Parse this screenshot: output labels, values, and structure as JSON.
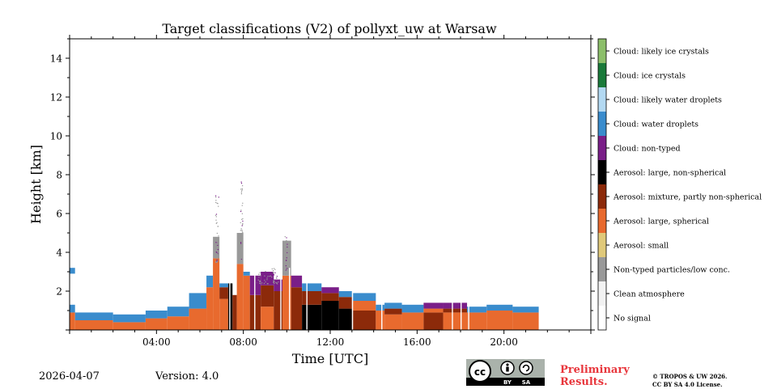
{
  "chart_data": {
    "type": "heatmap",
    "title": "Target classifications (V2) of pollyxt_uw at Warsaw",
    "xlabel": "Time [UTC]",
    "ylabel": "Height [km]",
    "xlim": [
      0,
      24
    ],
    "ylim": [
      0,
      15
    ],
    "x_ticks": [
      {
        "v": 4,
        "label": "04:00"
      },
      {
        "v": 8,
        "label": "08:00"
      },
      {
        "v": 12,
        "label": "12:00"
      },
      {
        "v": 16,
        "label": "16:00"
      },
      {
        "v": 20,
        "label": "20:00"
      }
    ],
    "y_ticks": [
      {
        "v": 2,
        "label": "2"
      },
      {
        "v": 4,
        "label": "4"
      },
      {
        "v": 6,
        "label": "6"
      },
      {
        "v": 8,
        "label": "8"
      },
      {
        "v": 10,
        "label": "10"
      },
      {
        "v": 12,
        "label": "12"
      },
      {
        "v": 14,
        "label": "14"
      }
    ],
    "classes": [
      {
        "label": "No signal",
        "color": "#ffffff"
      },
      {
        "label": "Clean atmosphere",
        "color": "#f2f2f2"
      },
      {
        "label": "Non-typed particles/low conc.",
        "color": "#999999"
      },
      {
        "label": "Aerosol: small",
        "color": "#e0c97a"
      },
      {
        "label": "Aerosol: large, spherical",
        "color": "#e86a2e"
      },
      {
        "label": "Aerosol: mixture, partly non-spherical",
        "color": "#8c2a0a"
      },
      {
        "label": "Aerosol: large, non-spherical",
        "color": "#000000"
      },
      {
        "label": "Cloud: non-typed",
        "color": "#7a1e88"
      },
      {
        "label": "Cloud: water droplets",
        "color": "#3a8ccd"
      },
      {
        "label": "Cloud: likely water droplets",
        "color": "#b3d9f2"
      },
      {
        "label": "Cloud: ice crystals",
        "color": "#1a7a3a"
      },
      {
        "label": "Cloud: likely ice crystals",
        "color": "#8cbf6a"
      }
    ],
    "segments": [
      {
        "t0": 0.0,
        "t1": 0.25,
        "class": 4,
        "h0": 0.0,
        "h1": 0.9
      },
      {
        "t0": 0.0,
        "t1": 0.25,
        "class": 8,
        "h0": 0.9,
        "h1": 1.3
      },
      {
        "t0": 0.0,
        "t1": 0.25,
        "class": 8,
        "h0": 2.9,
        "h1": 3.2
      },
      {
        "t0": 0.25,
        "t1": 2.0,
        "class": 4,
        "h0": 0.0,
        "h1": 0.5
      },
      {
        "t0": 0.25,
        "t1": 2.0,
        "class": 8,
        "h0": 0.5,
        "h1": 0.9
      },
      {
        "t0": 2.0,
        "t1": 3.5,
        "class": 4,
        "h0": 0.0,
        "h1": 0.4
      },
      {
        "t0": 2.0,
        "t1": 3.5,
        "class": 8,
        "h0": 0.4,
        "h1": 0.8
      },
      {
        "t0": 3.5,
        "t1": 4.5,
        "class": 4,
        "h0": 0.0,
        "h1": 0.6
      },
      {
        "t0": 3.5,
        "t1": 4.5,
        "class": 8,
        "h0": 0.6,
        "h1": 1.0
      },
      {
        "t0": 4.5,
        "t1": 5.5,
        "class": 4,
        "h0": 0.0,
        "h1": 0.7
      },
      {
        "t0": 4.5,
        "t1": 5.5,
        "class": 8,
        "h0": 0.7,
        "h1": 1.2
      },
      {
        "t0": 5.5,
        "t1": 6.3,
        "class": 4,
        "h0": 0.0,
        "h1": 1.1
      },
      {
        "t0": 5.5,
        "t1": 6.3,
        "class": 8,
        "h0": 1.1,
        "h1": 1.9
      },
      {
        "t0": 6.3,
        "t1": 6.6,
        "class": 4,
        "h0": 0.0,
        "h1": 2.2
      },
      {
        "t0": 6.3,
        "t1": 6.6,
        "class": 8,
        "h0": 2.2,
        "h1": 2.8
      },
      {
        "t0": 6.6,
        "t1": 6.9,
        "class": 4,
        "h0": 0.0,
        "h1": 3.7
      },
      {
        "t0": 6.6,
        "t1": 6.9,
        "class": 2,
        "h0": 3.7,
        "h1": 4.8
      },
      {
        "t0": 6.9,
        "t1": 7.3,
        "class": 4,
        "h0": 0.0,
        "h1": 1.6
      },
      {
        "t0": 6.9,
        "t1": 7.3,
        "class": 5,
        "h0": 1.6,
        "h1": 2.2
      },
      {
        "t0": 6.9,
        "t1": 7.3,
        "class": 8,
        "h0": 2.2,
        "h1": 2.4
      },
      {
        "t0": 7.3,
        "t1": 7.5,
        "class": 6,
        "h0": 0.0,
        "h1": 2.4
      },
      {
        "t0": 7.5,
        "t1": 7.7,
        "class": 5,
        "h0": 0.0,
        "h1": 1.8
      },
      {
        "t0": 7.7,
        "t1": 8.0,
        "class": 4,
        "h0": 0.0,
        "h1": 3.4
      },
      {
        "t0": 7.7,
        "t1": 8.0,
        "class": 2,
        "h0": 3.4,
        "h1": 5.0
      },
      {
        "t0": 8.0,
        "t1": 8.3,
        "class": 4,
        "h0": 0.0,
        "h1": 2.8
      },
      {
        "t0": 8.0,
        "t1": 8.3,
        "class": 8,
        "h0": 2.8,
        "h1": 3.0
      },
      {
        "t0": 8.3,
        "t1": 8.8,
        "class": 5,
        "h0": 0.0,
        "h1": 1.8
      },
      {
        "t0": 8.3,
        "t1": 8.8,
        "class": 7,
        "h0": 1.8,
        "h1": 2.8
      },
      {
        "t0": 8.8,
        "t1": 9.4,
        "class": 4,
        "h0": 0.0,
        "h1": 1.2
      },
      {
        "t0": 8.8,
        "t1": 9.4,
        "class": 5,
        "h0": 1.2,
        "h1": 2.3
      },
      {
        "t0": 8.8,
        "t1": 9.4,
        "class": 7,
        "h0": 2.3,
        "h1": 3.0
      },
      {
        "t0": 9.4,
        "t1": 9.8,
        "class": 5,
        "h0": 0.0,
        "h1": 2.0
      },
      {
        "t0": 9.4,
        "t1": 9.8,
        "class": 7,
        "h0": 2.0,
        "h1": 2.6
      },
      {
        "t0": 9.8,
        "t1": 10.2,
        "class": 4,
        "h0": 0.0,
        "h1": 2.8
      },
      {
        "t0": 9.8,
        "t1": 10.2,
        "class": 2,
        "h0": 2.8,
        "h1": 4.6
      },
      {
        "t0": 10.2,
        "t1": 10.7,
        "class": 5,
        "h0": 0.0,
        "h1": 2.2
      },
      {
        "t0": 10.2,
        "t1": 10.7,
        "class": 7,
        "h0": 2.2,
        "h1": 2.8
      },
      {
        "t0": 10.7,
        "t1": 11.6,
        "class": 6,
        "h0": 0.0,
        "h1": 1.3
      },
      {
        "t0": 10.7,
        "t1": 11.6,
        "class": 5,
        "h0": 1.3,
        "h1": 2.0
      },
      {
        "t0": 10.7,
        "t1": 11.6,
        "class": 8,
        "h0": 2.0,
        "h1": 2.4
      },
      {
        "t0": 11.6,
        "t1": 12.4,
        "class": 6,
        "h0": 0.0,
        "h1": 1.5
      },
      {
        "t0": 11.6,
        "t1": 12.4,
        "class": 5,
        "h0": 1.5,
        "h1": 1.9
      },
      {
        "t0": 11.6,
        "t1": 12.4,
        "class": 7,
        "h0": 1.9,
        "h1": 2.2
      },
      {
        "t0": 12.4,
        "t1": 13.0,
        "class": 6,
        "h0": 0.0,
        "h1": 1.1
      },
      {
        "t0": 12.4,
        "t1": 13.0,
        "class": 5,
        "h0": 1.1,
        "h1": 1.7
      },
      {
        "t0": 12.4,
        "t1": 13.0,
        "class": 8,
        "h0": 1.7,
        "h1": 2.0
      },
      {
        "t0": 13.0,
        "t1": 14.1,
        "class": 5,
        "h0": 0.0,
        "h1": 1.0
      },
      {
        "t0": 13.0,
        "t1": 14.1,
        "class": 4,
        "h0": 1.0,
        "h1": 1.5
      },
      {
        "t0": 13.0,
        "t1": 14.1,
        "class": 8,
        "h0": 1.5,
        "h1": 1.9
      },
      {
        "t0": 14.1,
        "t1": 14.5,
        "class": 4,
        "h0": 0.0,
        "h1": 1.0
      },
      {
        "t0": 14.1,
        "t1": 14.5,
        "class": 8,
        "h0": 1.0,
        "h1": 1.3
      },
      {
        "t0": 14.5,
        "t1": 15.3,
        "class": 4,
        "h0": 0.0,
        "h1": 0.8
      },
      {
        "t0": 14.5,
        "t1": 15.3,
        "class": 5,
        "h0": 0.8,
        "h1": 1.1
      },
      {
        "t0": 14.5,
        "t1": 15.3,
        "class": 8,
        "h0": 1.1,
        "h1": 1.4
      },
      {
        "t0": 15.3,
        "t1": 16.3,
        "class": 4,
        "h0": 0.0,
        "h1": 0.9
      },
      {
        "t0": 15.3,
        "t1": 16.3,
        "class": 8,
        "h0": 0.9,
        "h1": 1.3
      },
      {
        "t0": 16.3,
        "t1": 17.2,
        "class": 5,
        "h0": 0.0,
        "h1": 0.9
      },
      {
        "t0": 16.3,
        "t1": 17.2,
        "class": 4,
        "h0": 0.9,
        "h1": 1.1
      },
      {
        "t0": 16.3,
        "t1": 17.2,
        "class": 7,
        "h0": 1.1,
        "h1": 1.4
      },
      {
        "t0": 17.2,
        "t1": 18.3,
        "class": 4,
        "h0": 0.0,
        "h1": 0.9
      },
      {
        "t0": 17.2,
        "t1": 18.3,
        "class": 5,
        "h0": 0.9,
        "h1": 1.1
      },
      {
        "t0": 17.2,
        "t1": 18.3,
        "class": 7,
        "h0": 1.1,
        "h1": 1.4
      },
      {
        "t0": 18.3,
        "t1": 19.2,
        "class": 4,
        "h0": 0.0,
        "h1": 0.9
      },
      {
        "t0": 18.3,
        "t1": 19.2,
        "class": 8,
        "h0": 0.9,
        "h1": 1.2
      },
      {
        "t0": 19.2,
        "t1": 20.4,
        "class": 4,
        "h0": 0.0,
        "h1": 1.0
      },
      {
        "t0": 19.2,
        "t1": 20.4,
        "class": 8,
        "h0": 1.0,
        "h1": 1.3
      },
      {
        "t0": 20.4,
        "t1": 21.6,
        "class": 4,
        "h0": 0.0,
        "h1": 0.9
      },
      {
        "t0": 20.4,
        "t1": 21.6,
        "class": 8,
        "h0": 0.9,
        "h1": 1.2
      }
    ]
  },
  "footer": {
    "date": "2026-04-07",
    "version": "Version: 4.0",
    "cc_letters": "cc",
    "cc_by": "BY",
    "cc_sa": "SA",
    "preliminary_line1": "Preliminary",
    "preliminary_line2": "Results.",
    "copyright_line1": "© TROPOS & UW 2026.",
    "copyright_line2": "CC BY SA 4.0 License."
  }
}
